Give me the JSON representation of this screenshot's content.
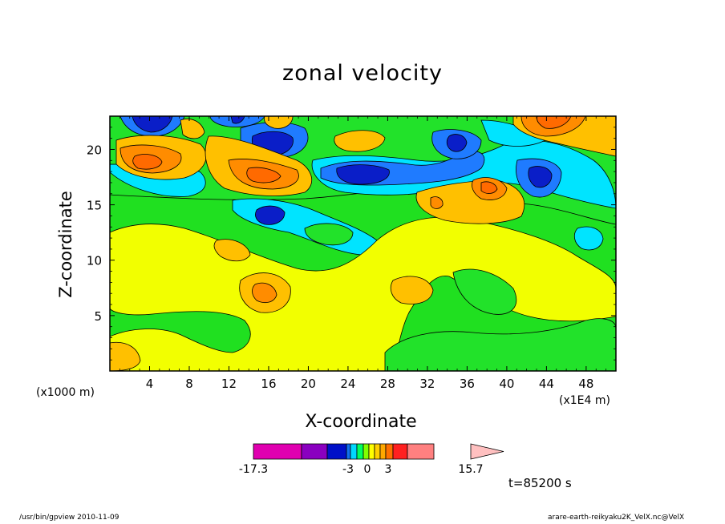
{
  "chart_data": {
    "type": "contour",
    "title": "zonal velocity",
    "xlabel": "X-coordinate",
    "ylabel": "Z-coordinate",
    "x_unit_left": "(x1000 m)",
    "x_unit_right": "(x1E4 m)",
    "xlim": [
      0,
      51
    ],
    "ylim": [
      0,
      23
    ],
    "x_ticks": [
      "4",
      "8",
      "12",
      "16",
      "20",
      "24",
      "28",
      "32",
      "36",
      "40",
      "44",
      "48"
    ],
    "y_ticks": [
      "5",
      "10",
      "15",
      "20"
    ],
    "colorbar": {
      "labels": [
        "-17.3",
        "-3",
        "0",
        "3",
        "15.7"
      ],
      "colors": [
        "#e000b0",
        "#8a00c0",
        "#0010c8",
        "#1070f0",
        "#00d8ff",
        "#00ff60",
        "#80ff00",
        "#ffff00",
        "#ffd000",
        "#ffa800",
        "#ff7000",
        "#ff2020",
        "#ff8080",
        "#ffc0c0"
      ]
    },
    "colors": {
      "deep_blue": "#0a1ec8",
      "blue": "#1f7bff",
      "cyan": "#00e4ff",
      "green": "#20e020",
      "yellow": "#f2ff00",
      "light_orange": "#ffc000",
      "orange": "#ff8c00",
      "dark_orange": "#ff6a00"
    }
  },
  "annotation": {
    "time": "t=85200 s"
  },
  "footer": {
    "left": "/usr/bin/gpview   2010-11-09",
    "right": "arare-earth-reikyaku2K_VelX.nc@VelX"
  }
}
